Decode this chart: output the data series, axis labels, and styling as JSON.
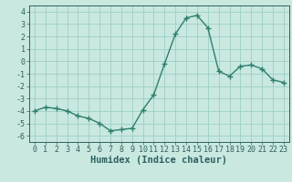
{
  "x": [
    0,
    1,
    2,
    3,
    4,
    5,
    6,
    7,
    8,
    9,
    10,
    11,
    12,
    13,
    14,
    15,
    16,
    17,
    18,
    19,
    20,
    21,
    22,
    23
  ],
  "y": [
    -4.0,
    -3.7,
    -3.8,
    -4.0,
    -4.4,
    -4.6,
    -5.0,
    -5.6,
    -5.5,
    -5.4,
    -3.9,
    -2.7,
    -0.2,
    2.2,
    3.5,
    3.7,
    2.7,
    -0.8,
    -1.2,
    -0.4,
    -0.3,
    -0.6,
    -1.5,
    -1.7
  ],
  "ylim": [
    -6.5,
    4.5
  ],
  "xlim": [
    -0.5,
    23.5
  ],
  "yticks": [
    -6,
    -5,
    -4,
    -3,
    -2,
    -1,
    0,
    1,
    2,
    3,
    4
  ],
  "xticks": [
    0,
    1,
    2,
    3,
    4,
    5,
    6,
    7,
    8,
    9,
    10,
    11,
    12,
    13,
    14,
    15,
    16,
    17,
    18,
    19,
    20,
    21,
    22,
    23
  ],
  "xlabel": "Humidex (Indice chaleur)",
  "line_color": "#2e7f6e",
  "marker": "+",
  "bg_color": "#c8e8e0",
  "grid_color": "#9ecec8",
  "tick_color": "#2e6060",
  "xlabel_color": "#2e6060",
  "marker_size": 4,
  "line_width": 1.0,
  "font_size": 6.0,
  "xlabel_font_size": 7.5
}
